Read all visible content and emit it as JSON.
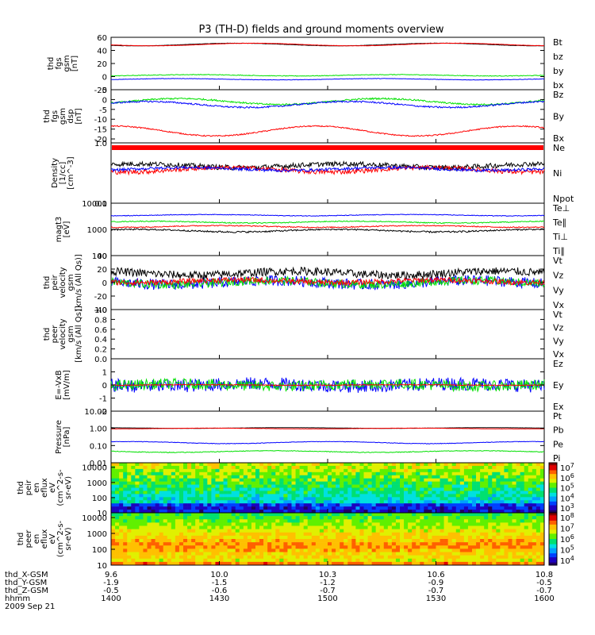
{
  "title": "P3 (TH-D) fields and ground moments overview",
  "colors": {
    "black": "#000000",
    "red": "#ff0000",
    "green": "#00e000",
    "blue": "#0000ff"
  },
  "chart_data": {
    "type": "line",
    "panels": [
      {
        "ylabel": [
          "thd",
          "fgs",
          "gsm",
          "[nT]"
        ],
        "yticks": [
          "60",
          "40",
          "20",
          "0",
          "-20"
        ],
        "ylim": [
          -20,
          60
        ],
        "legend": [
          {
            "label": "Bt",
            "color": "black"
          },
          {
            "label": "bz",
            "color": "red"
          },
          {
            "label": "by",
            "color": "green"
          },
          {
            "label": "bx",
            "color": "blue"
          }
        ],
        "series": [
          {
            "color": "black",
            "base": 49,
            "wave": 2,
            "noise": 0.2
          },
          {
            "color": "red",
            "base": 49,
            "wave": 2,
            "noise": 0.2
          },
          {
            "color": "green",
            "base": 2,
            "wave": 1,
            "noise": 0.5
          },
          {
            "color": "blue",
            "base": -4,
            "wave": 1,
            "noise": 0.3
          }
        ]
      },
      {
        "ylabel": [
          "thd",
          "fgs",
          "gsm",
          "dsp",
          "[nT]"
        ],
        "yticks": [
          "5",
          "0",
          "-5",
          "-10",
          "-15",
          "-20"
        ],
        "ylim": [
          -22,
          5
        ],
        "legend": [
          {
            "label": "Bz",
            "color": "red"
          },
          {
            "label": "By",
            "color": "green"
          },
          {
            "label": "Bx",
            "color": "blue"
          }
        ],
        "series": [
          {
            "color": "red",
            "base": -16,
            "wave": 2.5,
            "noise": 0.3
          },
          {
            "color": "green",
            "base": -1,
            "wave": 1.5,
            "noise": 0.4
          },
          {
            "color": "blue",
            "base": -2.5,
            "wave": 1.5,
            "noise": 0.4
          }
        ]
      },
      {
        "ylabel": [
          "Density",
          "[1/cc]",
          "[cm^-3]"
        ],
        "yticks": [
          "1.0",
          "0.1"
        ],
        "ylim": [
          0.1,
          1.0
        ],
        "legend": [
          {
            "label": "Ne",
            "color": "red"
          },
          {
            "label": "Ni",
            "color": "black"
          },
          {
            "label": "Npot",
            "color": "blue"
          }
        ],
        "series": [
          {
            "color": "black",
            "base": 0.42,
            "wave": 0.03,
            "noise": 0.04
          },
          {
            "color": "red",
            "base": 0.36,
            "wave": 0.03,
            "noise": 0.03
          },
          {
            "color": "blue",
            "base": 0.37,
            "wave": 0.02,
            "noise": 0.02
          }
        ]
      },
      {
        "ylabel": [
          "magt3",
          "[eV]"
        ],
        "yticks": [
          "10000",
          "1000",
          "100"
        ],
        "ylim": [
          100,
          10000
        ],
        "legend": [
          {
            "label": "Te⊥",
            "color": "red"
          },
          {
            "label": "Te∥",
            "color": "black"
          },
          {
            "label": "Ti⊥",
            "color": "blue"
          },
          {
            "label": "Ti∥",
            "color": "green"
          }
        ],
        "series": [
          {
            "color": "blue",
            "base": 3500,
            "wave": 200,
            "noise": 100
          },
          {
            "color": "green",
            "base": 1900,
            "wave": 150,
            "noise": 80
          },
          {
            "color": "red",
            "base": 1300,
            "wave": 100,
            "noise": 60
          },
          {
            "color": "black",
            "base": 900,
            "wave": 100,
            "noise": 60
          }
        ]
      },
      {
        "ylabel": [
          "thd",
          "peir",
          "velocity",
          "gsm",
          "[km/s (All Qs)]"
        ],
        "yticks": [
          "40",
          "20",
          "0",
          "-20",
          "-40"
        ],
        "ylim": [
          -40,
          40
        ],
        "legend": [
          {
            "label": "Vt",
            "color": "black"
          },
          {
            "label": "Vz",
            "color": "red"
          },
          {
            "label": "Vy",
            "color": "green"
          },
          {
            "label": "Vx",
            "color": "blue"
          }
        ],
        "series": [
          {
            "color": "blue",
            "base": 0,
            "wave": 3,
            "noise": 8
          },
          {
            "color": "green",
            "base": 0,
            "wave": 3,
            "noise": 6
          },
          {
            "color": "red",
            "base": 2,
            "wave": 2,
            "noise": 4
          },
          {
            "color": "black",
            "base": 14,
            "wave": 3,
            "noise": 6
          }
        ]
      },
      {
        "ylabel": [
          "thd",
          "peer",
          "velocity",
          "gsm",
          "[km/s (All Qs)]"
        ],
        "yticks": [
          "1.0",
          "0.8",
          "0.6",
          "0.4",
          "0.2",
          "0.0"
        ],
        "ylim": [
          0,
          1
        ],
        "legend": [
          {
            "label": "Vt",
            "color": "black"
          },
          {
            "label": "Vz",
            "color": "red"
          },
          {
            "label": "Vy",
            "color": "green"
          },
          {
            "label": "Vx",
            "color": "blue"
          }
        ],
        "series": []
      },
      {
        "ylabel": [
          "E=-VxB",
          "[mV/m]"
        ],
        "yticks": [
          "1",
          "0",
          "-1",
          "-2"
        ],
        "ylim": [
          -2,
          2
        ],
        "legend": [
          {
            "label": "Ez",
            "color": "red"
          },
          {
            "label": "Ey",
            "color": "green"
          },
          {
            "label": "Ex",
            "color": "blue"
          }
        ],
        "series": [
          {
            "color": "blue",
            "base": 0,
            "wave": 0.1,
            "noise": 0.5
          },
          {
            "color": "green",
            "base": 0,
            "wave": 0.1,
            "noise": 0.4
          },
          {
            "color": "red",
            "base": 0,
            "wave": 0.02,
            "noise": 0.03
          }
        ]
      },
      {
        "ylabel": [
          "Pressure",
          "[nPa]"
        ],
        "yticks": [
          "10.00",
          "1.00",
          "0.10",
          "0.01"
        ],
        "ylim": [
          0.01,
          10
        ],
        "legend": [
          {
            "label": "Pt",
            "color": "black"
          },
          {
            "label": "Pb",
            "color": "red"
          },
          {
            "label": "Pe",
            "color": "green"
          },
          {
            "label": "Pi",
            "color": "blue"
          }
        ],
        "series": [
          {
            "color": "black",
            "base": 1.05,
            "wave": 0.05,
            "noise": 0.01
          },
          {
            "color": "red",
            "base": 0.98,
            "wave": 0.05,
            "noise": 0.01
          },
          {
            "color": "blue",
            "base": 0.15,
            "wave": 0.02,
            "noise": 0.005
          },
          {
            "color": "green",
            "base": 0.045,
            "wave": 0.005,
            "noise": 0.002
          }
        ]
      }
    ],
    "spectrograms": [
      {
        "ylabel": [
          "thd",
          "peir",
          "en",
          "eflux",
          "eV",
          "(cm^2-s-",
          "sr-eV)"
        ],
        "yticks": [
          "10000",
          "1000",
          "100",
          "10"
        ],
        "ylim": [
          10,
          20000
        ],
        "colorbar_ticks": [
          "10^7",
          "10^6",
          "10^5",
          "10^4",
          "10^3"
        ]
      },
      {
        "ylabel": [
          "thd",
          "peer",
          "en",
          "eflux",
          "eV",
          "(cm^2-s-",
          "sr-eV)"
        ],
        "yticks": [
          "10000",
          "1000",
          "100",
          "10"
        ],
        "ylim": [
          10,
          20000
        ],
        "colorbar_ticks": [
          "10^8",
          "10^7",
          "10^6",
          "10^5",
          "10^4"
        ]
      }
    ],
    "x_axis": {
      "row_labels": [
        "thd_X-GSM",
        "thd_Y-GSM",
        "thd_Z-GSM",
        "hhmm",
        "2009 Sep 21"
      ],
      "ticks": [
        {
          "x": "9.6",
          "y": "-1.9",
          "z": "-0.5",
          "hhmm": "1400"
        },
        {
          "x": "10.0",
          "y": "-1.5",
          "z": "-0.6",
          "hhmm": "1430"
        },
        {
          "x": "10.3",
          "y": "-1.2",
          "z": "-0.7",
          "hhmm": "1500"
        },
        {
          "x": "10.6",
          "y": "-0.9",
          "z": "-0.7",
          "hhmm": "1530"
        },
        {
          "x": "10.8",
          "y": "-0.5",
          "z": "-0.7",
          "hhmm": "1600"
        }
      ]
    }
  }
}
